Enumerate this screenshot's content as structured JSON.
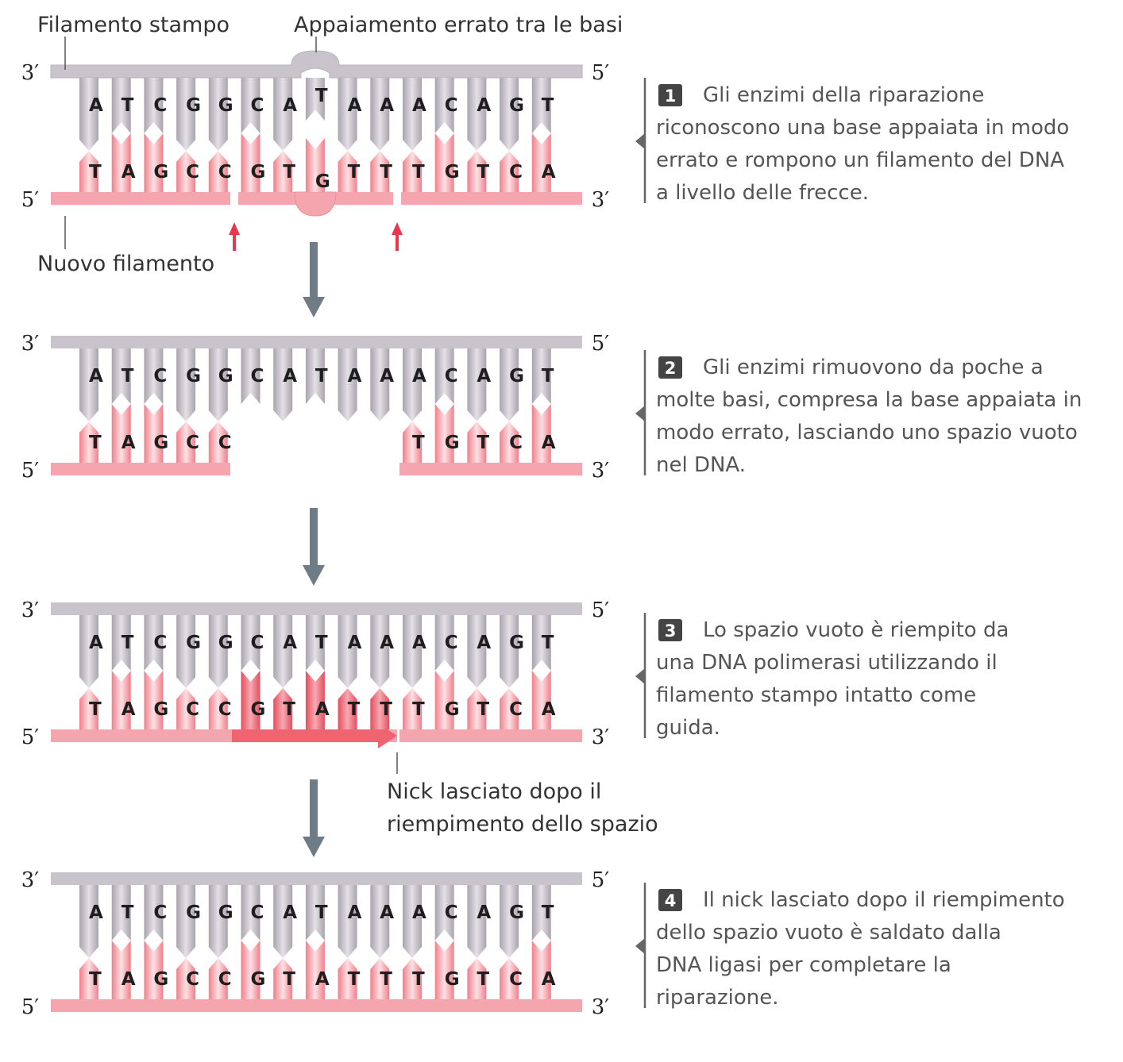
{
  "labels": {
    "template_strand": "Filamento stampo",
    "mismatch": "Appaiamento errato tra le basi",
    "new_strand": "Nuovo filamento",
    "nick_line1": "Nick lasciato dopo il",
    "nick_line2": "riempimento dello spazio"
  },
  "ends": {
    "three_prime": "3′",
    "five_prime": "5′"
  },
  "sequences": {
    "template": [
      "A",
      "T",
      "C",
      "G",
      "G",
      "C",
      "A",
      "T",
      "A",
      "A",
      "A",
      "C",
      "A",
      "G",
      "T"
    ],
    "new_initial": [
      "T",
      "A",
      "G",
      "C",
      "C",
      "G",
      "T",
      "G",
      "T",
      "T",
      "T",
      "G",
      "T",
      "C",
      "A"
    ],
    "new_repaired": [
      "T",
      "A",
      "G",
      "C",
      "C",
      "G",
      "T",
      "A",
      "T",
      "T",
      "T",
      "G",
      "T",
      "C",
      "A"
    ]
  },
  "steps": [
    {
      "number": "1",
      "lines": [
        "Gli enzimi della riparazione",
        "riconoscono una base appaiata in modo",
        "errato e rompono un filamento del DNA",
        "a livello delle frecce."
      ]
    },
    {
      "number": "2",
      "lines": [
        "Gli enzimi rimuovono da poche a",
        "molte basi, compresa la base appaiata in",
        "modo errato, lasciando uno spazio vuoto",
        "nel DNA."
      ]
    },
    {
      "number": "3",
      "lines": [
        "Lo spazio vuoto è riempito da",
        "una DNA polimerasi utilizzando il",
        "filamento stampo intatto come",
        "guida."
      ]
    },
    {
      "number": "4",
      "lines": [
        "Il nick lasciato dopo il riempimento",
        "dello spazio vuoto è saldato dalla",
        "DNA ligasi per completare la",
        "riparazione."
      ]
    }
  ],
  "colors": {
    "template_strand": "#c9c4cc",
    "new_strand": "#f5a5ae",
    "new_fill": "#ef6470",
    "cut_arrow": "#e8364f",
    "flow_arrow": "#6f7c86"
  }
}
